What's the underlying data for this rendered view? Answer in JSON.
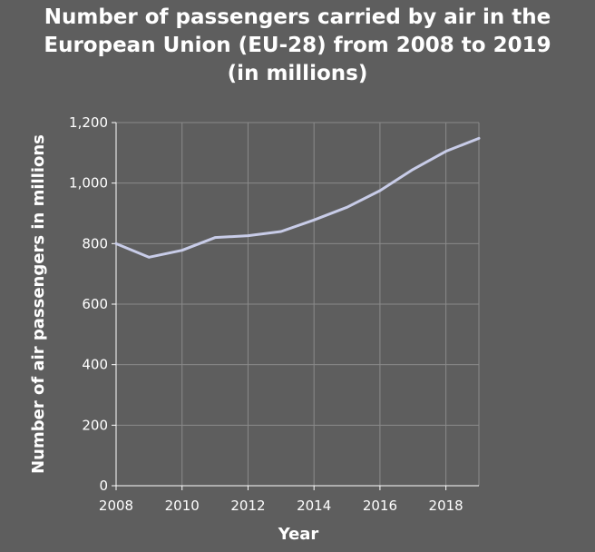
{
  "chart_data": {
    "type": "line",
    "title_lines": [
      "Number of passengers carried by air in the",
      "European Union (EU-28) from 2008 to 2019",
      "(in millions)"
    ],
    "xlabel": "Year",
    "ylabel": "Number of air passengers in millions",
    "x_ticks": [
      "2008",
      "2010",
      "2012",
      "2014",
      "2016",
      "2018"
    ],
    "y_ticks": [
      "0",
      "200",
      "400",
      "600",
      "800",
      "1,000",
      "1,200"
    ],
    "xlim": [
      2008,
      2019
    ],
    "ylim": [
      0,
      1200
    ],
    "grid": true,
    "line_color": "#c8cce8",
    "x": [
      2008,
      2009,
      2010,
      2011,
      2012,
      2013,
      2014,
      2015,
      2016,
      2017,
      2018,
      2019
    ],
    "series": [
      {
        "values": [
          800,
          755,
          778,
          820,
          826,
          840,
          878,
          920,
          975,
          1045,
          1105,
          1148
        ]
      }
    ]
  }
}
